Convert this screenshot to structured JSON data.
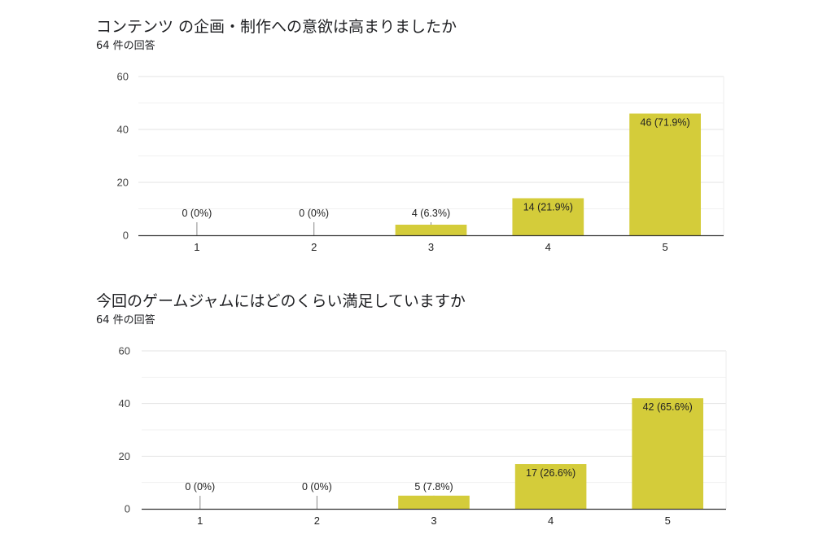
{
  "chart_data": [
    {
      "type": "bar",
      "title": "コンテンツ の企画・制作への意欲は高まりましたか",
      "subtitle": "64 件の回答",
      "categories": [
        "1",
        "2",
        "3",
        "4",
        "5"
      ],
      "values": [
        0,
        0,
        4,
        14,
        46
      ],
      "data_labels": [
        "0 (0%)",
        "0 (0%)",
        "4 (6.3%)",
        "14 (21.9%)",
        "46 (71.9%)"
      ],
      "yticks": [
        0,
        20,
        40,
        60
      ],
      "ylim": [
        0,
        60
      ],
      "grid": true,
      "bar_color": "#d4cc3a",
      "xlabel": "",
      "ylabel": ""
    },
    {
      "type": "bar",
      "title": "今回のゲームジャムにはどのくらい満足していますか",
      "subtitle": "64 件の回答",
      "categories": [
        "1",
        "2",
        "3",
        "4",
        "5"
      ],
      "values": [
        0,
        0,
        5,
        17,
        42
      ],
      "data_labels": [
        "0 (0%)",
        "0 (0%)",
        "5 (7.8%)",
        "17 (26.6%)",
        "42 (65.6%)"
      ],
      "yticks": [
        0,
        20,
        40,
        60
      ],
      "ylim": [
        0,
        60
      ],
      "grid": true,
      "bar_color": "#d4cc3a",
      "xlabel": "",
      "ylabel": ""
    }
  ]
}
